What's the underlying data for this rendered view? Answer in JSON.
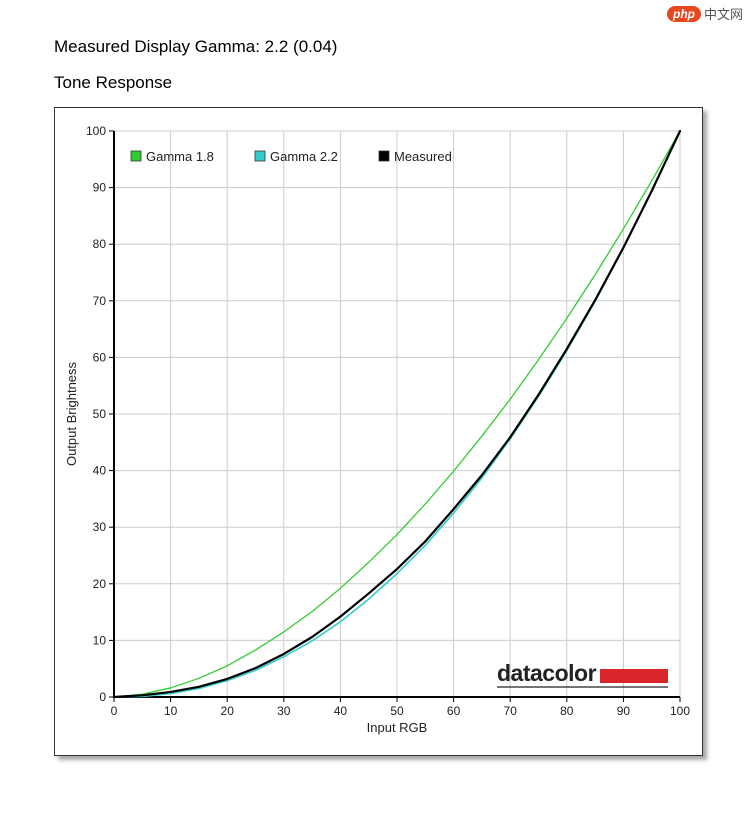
{
  "watermark": {
    "badge": "php",
    "text": "中文网"
  },
  "header": {
    "title": "Measured Display Gamma: 2.2 (0.04)",
    "subtitle": "Tone Response"
  },
  "chart_data": {
    "type": "line",
    "title": "",
    "xlabel": "Input RGB",
    "ylabel": "Output Brightness",
    "xlim": [
      0,
      100
    ],
    "ylim": [
      0,
      100
    ],
    "xticks": [
      0,
      10,
      20,
      30,
      40,
      50,
      60,
      70,
      80,
      90,
      100
    ],
    "yticks": [
      0,
      10,
      20,
      30,
      40,
      50,
      60,
      70,
      80,
      90,
      100
    ],
    "grid": true,
    "legend_position": "top-left",
    "logo_text": "datacolor",
    "series": [
      {
        "name": "Gamma 1.8",
        "color": "#33cc33",
        "x": [
          0,
          5,
          10,
          15,
          20,
          25,
          30,
          35,
          40,
          45,
          50,
          55,
          60,
          65,
          70,
          75,
          80,
          85,
          90,
          95,
          100
        ],
        "y": [
          0,
          0.5,
          1.6,
          3.3,
          5.5,
          8.3,
          11.5,
          15.1,
          19.2,
          23.8,
          28.7,
          34.1,
          39.9,
          46.1,
          52.6,
          59.6,
          66.9,
          74.6,
          82.7,
          91.2,
          100
        ]
      },
      {
        "name": "Gamma 2.2",
        "color": "#33cccc",
        "x": [
          0,
          5,
          10,
          15,
          20,
          25,
          30,
          35,
          40,
          45,
          50,
          55,
          60,
          65,
          70,
          75,
          80,
          85,
          90,
          95,
          100
        ],
        "y": [
          0,
          0.1,
          0.6,
          1.5,
          2.9,
          4.7,
          7.1,
          9.9,
          13.3,
          17.3,
          21.8,
          26.8,
          32.5,
          38.7,
          45.6,
          53.1,
          61.2,
          69.9,
          79.3,
          89.3,
          100
        ]
      },
      {
        "name": "Measured",
        "color": "#000000",
        "x": [
          0,
          5,
          10,
          15,
          20,
          25,
          30,
          35,
          40,
          45,
          50,
          55,
          60,
          65,
          70,
          75,
          80,
          85,
          90,
          95,
          100
        ],
        "y": [
          0,
          0.3,
          0.9,
          1.8,
          3.2,
          5.1,
          7.6,
          10.6,
          14.2,
          18.3,
          22.6,
          27.5,
          33.2,
          39.2,
          45.9,
          53.4,
          61.5,
          70.1,
          79.4,
          89.4,
          100
        ]
      }
    ]
  }
}
